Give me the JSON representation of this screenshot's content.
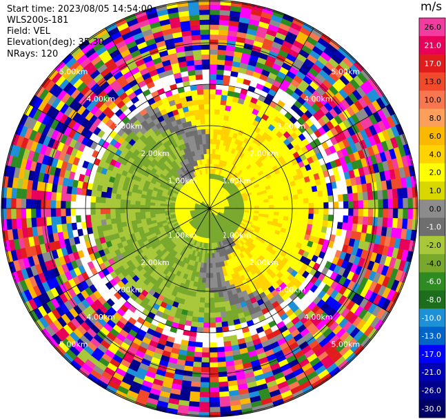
{
  "header": {
    "start_time": "Start time: 2023/08/05 14:54:00",
    "site": "WLS200s-181",
    "field": "Field: VEL",
    "elevation": "Elevation(deg): 35.30",
    "nrays": "NRays: 120"
  },
  "colorbar": {
    "unit": "m/s",
    "ticks": [
      "26.0",
      "21.0",
      "17.0",
      "13.0",
      "10.0",
      "8.0",
      "6.0",
      "4.0",
      "2.0",
      "1.0",
      "0.0",
      "-1.0",
      "-2.0",
      "-4.0",
      "-6.0",
      "-8.0",
      "-10.0",
      "-13.0",
      "-17.0",
      "-21.0",
      "-26.0",
      "-30.0"
    ],
    "colors": [
      "#f23ca0",
      "#e8005a",
      "#e01c1c",
      "#f04a2a",
      "#f87650",
      "#fc9f5a",
      "#fbb800",
      "#ffd200",
      "#ffff00",
      "#d8d800",
      "#8c8c8c",
      "#6e6e6e",
      "#a8c83a",
      "#78a82c",
      "#2e8b22",
      "#1c6e1c",
      "#1e90d8",
      "#0064c8",
      "#0000ff",
      "#0000b4",
      "#00008c",
      "#000066"
    ]
  },
  "chart_data": {
    "type": "heatmap",
    "subtype": "radar-ppi",
    "field": "VEL",
    "units": "m/s",
    "nrays": 120,
    "elevation_deg": 35.3,
    "range_rings_km": [
      1,
      2,
      3,
      4,
      5
    ],
    "ring_labels": [
      "1.00km",
      "2.00km",
      "3.00km",
      "4.00km",
      "5.00km"
    ],
    "spoke_angles_deg": [
      0,
      30,
      60,
      90,
      120,
      150
    ],
    "vmin": -30,
    "vmax": 26,
    "max_range_km": 6
  }
}
